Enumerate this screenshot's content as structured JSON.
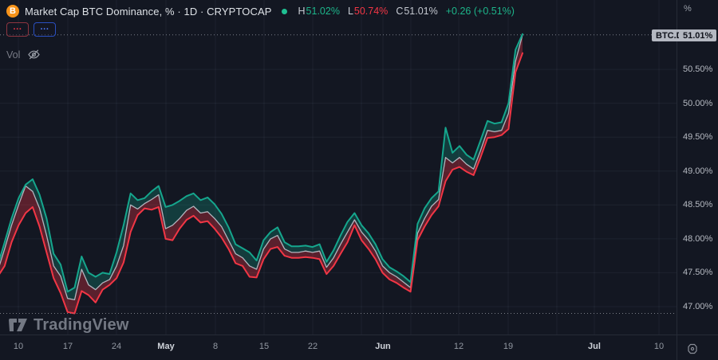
{
  "header": {
    "title": "Market Cap BTC Dominance, % · 1D · CRYPTOCAP",
    "symbol_icon": "bitcoin-icon",
    "icon_letter": "B",
    "ohlc": {
      "h_label": "H",
      "h_value": "51.02%",
      "l_label": "L",
      "l_value": "50.74%",
      "c_label": "C",
      "c_value": "51.01%",
      "change": "+0.26 (+0.51%)"
    },
    "collapsed_buttons": [
      {
        "label": "···",
        "color": "red"
      },
      {
        "label": "···",
        "color": "blue"
      }
    ],
    "vol_label": "Vol"
  },
  "badges": {
    "symbol": "BTC.D",
    "price": "51.01%"
  },
  "price_axis": {
    "unit": "%",
    "labels": [
      "50.50%",
      "50.00%",
      "49.50%",
      "49.00%",
      "48.50%",
      "48.00%",
      "47.50%",
      "47.00%"
    ]
  },
  "time_axis": {
    "ticks": [
      {
        "label": "10",
        "emphasis": false
      },
      {
        "label": "17",
        "emphasis": false
      },
      {
        "label": "24",
        "emphasis": false
      },
      {
        "label": "May",
        "emphasis": true
      },
      {
        "label": "8",
        "emphasis": false
      },
      {
        "label": "15",
        "emphasis": false
      },
      {
        "label": "22",
        "emphasis": false
      },
      {
        "label": "Jun",
        "emphasis": true
      },
      {
        "label": "12",
        "emphasis": false
      },
      {
        "label": "19",
        "emphasis": false
      },
      {
        "label": "Jul",
        "emphasis": true
      },
      {
        "label": "10",
        "emphasis": false
      }
    ]
  },
  "watermark": "TradingView",
  "colors": {
    "background": "#131722",
    "grid": "rgba(134,150,177,0.09)",
    "high_line": "#15a68d",
    "low_line": "#f23645",
    "close_line": "#b2b5be",
    "high_fill": "rgba(21,166,141,0.26)",
    "low_fill": "rgba(242,54,69,0.32)",
    "price_line": "#7a7e87",
    "badge_bg": "#b4b8c1",
    "accent_up": "#1db58a",
    "accent_down": "#f23645",
    "bitcoin_orange": "#f7931a"
  },
  "chart_data": {
    "type": "line",
    "title": "Market Cap BTC Dominance, % · 1D · CRYPTOCAP",
    "ylabel": "%",
    "ylim": [
      46.85,
      51.1
    ],
    "y_gridlines": [
      47.0,
      47.5,
      48.0,
      48.5,
      49.0,
      49.5,
      50.0,
      50.5
    ],
    "legend_position": "top-left",
    "price_lines": [
      51.01,
      46.9
    ],
    "dates": [
      "Apr 7",
      "Apr 8",
      "Apr 9",
      "Apr 10",
      "Apr 11",
      "Apr 12",
      "Apr 13",
      "Apr 14",
      "Apr 15",
      "Apr 16",
      "Apr 17",
      "Apr 18",
      "Apr 19",
      "Apr 20",
      "Apr 21",
      "Apr 22",
      "Apr 23",
      "Apr 24",
      "Apr 25",
      "Apr 26",
      "Apr 27",
      "Apr 28",
      "Apr 29",
      "Apr 30",
      "May 1",
      "May 2",
      "May 3",
      "May 4",
      "May 5",
      "May 6",
      "May 7",
      "May 8",
      "May 9",
      "May 10",
      "May 11",
      "May 12",
      "May 13",
      "May 14",
      "May 15",
      "May 16",
      "May 17",
      "May 18",
      "May 19",
      "May 20",
      "May 21",
      "May 22",
      "May 23",
      "May 24",
      "May 25",
      "May 26",
      "May 27",
      "May 28",
      "May 29",
      "May 30",
      "May 31",
      "Jun 1",
      "Jun 2",
      "Jun 3",
      "Jun 4",
      "Jun 5",
      "Jun 6",
      "Jun 7",
      "Jun 8",
      "Jun 9",
      "Jun 10",
      "Jun 11",
      "Jun 12",
      "Jun 13",
      "Jun 14",
      "Jun 15",
      "Jun 16",
      "Jun 17",
      "Jun 18",
      "Jun 19",
      "Jun 20",
      "Jun 21"
    ],
    "series": [
      {
        "name": "High",
        "values": [
          47.6,
          47.95,
          48.3,
          48.6,
          48.8,
          48.88,
          48.65,
          48.3,
          47.78,
          47.62,
          47.22,
          47.28,
          47.74,
          47.5,
          47.44,
          47.5,
          47.48,
          47.8,
          48.2,
          48.67,
          48.57,
          48.6,
          48.7,
          48.78,
          48.47,
          48.5,
          48.56,
          48.63,
          48.67,
          48.57,
          48.61,
          48.51,
          48.37,
          48.17,
          47.92,
          47.86,
          47.8,
          47.68,
          47.98,
          48.1,
          48.17,
          47.95,
          47.89,
          47.89,
          47.9,
          47.88,
          47.92,
          47.66,
          47.83,
          48.05,
          48.25,
          48.38,
          48.2,
          48.08,
          47.92,
          47.7,
          47.58,
          47.52,
          47.45,
          47.36,
          48.22,
          48.45,
          48.6,
          48.7,
          49.64,
          49.27,
          49.37,
          49.24,
          49.17,
          49.45,
          49.74,
          49.7,
          49.72,
          50.0,
          50.79,
          51.02
        ]
      },
      {
        "name": "Close",
        "values": [
          47.52,
          47.85,
          48.2,
          48.5,
          48.78,
          48.7,
          48.45,
          48.05,
          47.6,
          47.45,
          47.12,
          47.1,
          47.55,
          47.32,
          47.25,
          47.35,
          47.4,
          47.6,
          47.9,
          48.5,
          48.44,
          48.52,
          48.58,
          48.65,
          48.15,
          48.2,
          48.3,
          48.42,
          48.48,
          48.38,
          48.4,
          48.3,
          48.18,
          47.98,
          47.78,
          47.72,
          47.6,
          47.55,
          47.85,
          48.0,
          48.05,
          47.85,
          47.8,
          47.8,
          47.82,
          47.8,
          47.82,
          47.58,
          47.72,
          47.92,
          48.1,
          48.28,
          48.1,
          47.98,
          47.82,
          47.6,
          47.5,
          47.44,
          47.36,
          47.28,
          48.08,
          48.3,
          48.48,
          48.58,
          49.2,
          49.12,
          49.2,
          49.1,
          49.03,
          49.3,
          49.6,
          49.58,
          49.6,
          49.85,
          50.62,
          51.01
        ]
      },
      {
        "name": "Low",
        "values": [
          47.44,
          47.6,
          47.95,
          48.2,
          48.38,
          48.47,
          48.18,
          47.8,
          47.42,
          47.2,
          46.92,
          46.9,
          47.23,
          47.17,
          47.06,
          47.25,
          47.32,
          47.42,
          47.65,
          48.1,
          48.35,
          48.45,
          48.43,
          48.47,
          48.0,
          47.98,
          48.15,
          48.28,
          48.34,
          48.24,
          48.26,
          48.15,
          48.02,
          47.85,
          47.64,
          47.6,
          47.44,
          47.43,
          47.7,
          47.85,
          47.88,
          47.75,
          47.72,
          47.72,
          47.73,
          47.72,
          47.7,
          47.48,
          47.6,
          47.78,
          47.95,
          48.2,
          47.98,
          47.85,
          47.7,
          47.5,
          47.4,
          47.35,
          47.28,
          47.22,
          47.98,
          48.18,
          48.35,
          48.48,
          48.85,
          49.02,
          49.06,
          48.99,
          48.94,
          49.2,
          49.49,
          49.5,
          49.53,
          49.62,
          50.46,
          50.74
        ]
      }
    ]
  }
}
